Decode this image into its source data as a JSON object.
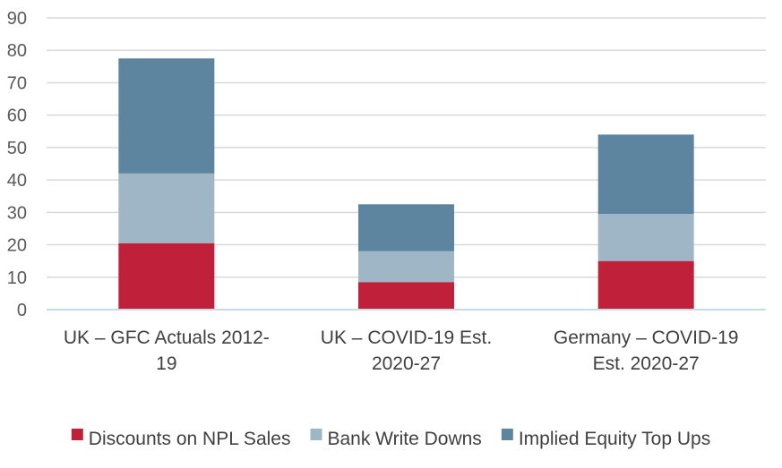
{
  "chart_data": {
    "type": "bar",
    "stacked": true,
    "categories": [
      [
        "UK – GFC Actuals 2012-",
        "19"
      ],
      [
        "UK – COVID-19 Est.",
        "2020-27"
      ],
      [
        "Germany – COVID-19",
        "Est. 2020-27"
      ]
    ],
    "series": [
      {
        "name": "Discounts on NPL Sales",
        "color": "#c0203a",
        "values": [
          20.5,
          8.5,
          15
        ]
      },
      {
        "name": "Bank Write Downs",
        "color": "#9fb6c6",
        "values": [
          21.5,
          9.5,
          14.5
        ]
      },
      {
        "name": "Implied Equity Top Ups",
        "color": "#5d859f",
        "values": [
          35.5,
          14.5,
          24.5
        ]
      }
    ],
    "ylim": [
      0,
      90
    ],
    "yticks": [
      0,
      10,
      20,
      30,
      40,
      50,
      60,
      70,
      80,
      90
    ],
    "grid": true,
    "legend": "bottom",
    "title": "",
    "xlabel": "",
    "ylabel": ""
  }
}
